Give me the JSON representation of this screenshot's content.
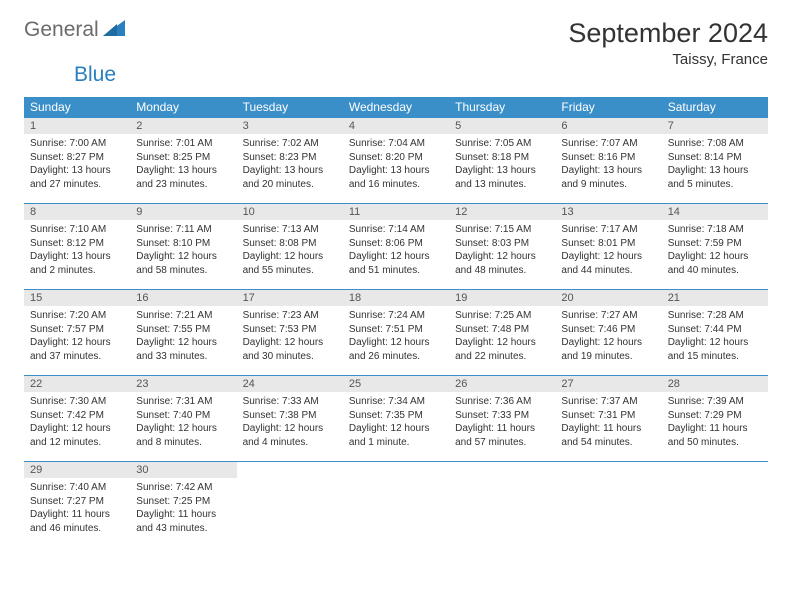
{
  "brand": {
    "part1": "General",
    "part2": "Blue"
  },
  "title": "September 2024",
  "location": "Taissy, France",
  "style": {
    "header_bg": "#3b8fc9",
    "header_text": "#ffffff",
    "cell_border": "#3b8fc9",
    "daynum_bg": "#e8e8e8",
    "body_bg": "#ffffff",
    "text_color": "#333333",
    "logo_gray": "#6b6b6b",
    "logo_blue": "#2a7fbf"
  },
  "weekdays": [
    "Sunday",
    "Monday",
    "Tuesday",
    "Wednesday",
    "Thursday",
    "Friday",
    "Saturday"
  ],
  "days": [
    {
      "n": 1,
      "sr": "7:00 AM",
      "ss": "8:27 PM",
      "dl": "13 hours and 27 minutes."
    },
    {
      "n": 2,
      "sr": "7:01 AM",
      "ss": "8:25 PM",
      "dl": "13 hours and 23 minutes."
    },
    {
      "n": 3,
      "sr": "7:02 AM",
      "ss": "8:23 PM",
      "dl": "13 hours and 20 minutes."
    },
    {
      "n": 4,
      "sr": "7:04 AM",
      "ss": "8:20 PM",
      "dl": "13 hours and 16 minutes."
    },
    {
      "n": 5,
      "sr": "7:05 AM",
      "ss": "8:18 PM",
      "dl": "13 hours and 13 minutes."
    },
    {
      "n": 6,
      "sr": "7:07 AM",
      "ss": "8:16 PM",
      "dl": "13 hours and 9 minutes."
    },
    {
      "n": 7,
      "sr": "7:08 AM",
      "ss": "8:14 PM",
      "dl": "13 hours and 5 minutes."
    },
    {
      "n": 8,
      "sr": "7:10 AM",
      "ss": "8:12 PM",
      "dl": "13 hours and 2 minutes."
    },
    {
      "n": 9,
      "sr": "7:11 AM",
      "ss": "8:10 PM",
      "dl": "12 hours and 58 minutes."
    },
    {
      "n": 10,
      "sr": "7:13 AM",
      "ss": "8:08 PM",
      "dl": "12 hours and 55 minutes."
    },
    {
      "n": 11,
      "sr": "7:14 AM",
      "ss": "8:06 PM",
      "dl": "12 hours and 51 minutes."
    },
    {
      "n": 12,
      "sr": "7:15 AM",
      "ss": "8:03 PM",
      "dl": "12 hours and 48 minutes."
    },
    {
      "n": 13,
      "sr": "7:17 AM",
      "ss": "8:01 PM",
      "dl": "12 hours and 44 minutes."
    },
    {
      "n": 14,
      "sr": "7:18 AM",
      "ss": "7:59 PM",
      "dl": "12 hours and 40 minutes."
    },
    {
      "n": 15,
      "sr": "7:20 AM",
      "ss": "7:57 PM",
      "dl": "12 hours and 37 minutes."
    },
    {
      "n": 16,
      "sr": "7:21 AM",
      "ss": "7:55 PM",
      "dl": "12 hours and 33 minutes."
    },
    {
      "n": 17,
      "sr": "7:23 AM",
      "ss": "7:53 PM",
      "dl": "12 hours and 30 minutes."
    },
    {
      "n": 18,
      "sr": "7:24 AM",
      "ss": "7:51 PM",
      "dl": "12 hours and 26 minutes."
    },
    {
      "n": 19,
      "sr": "7:25 AM",
      "ss": "7:48 PM",
      "dl": "12 hours and 22 minutes."
    },
    {
      "n": 20,
      "sr": "7:27 AM",
      "ss": "7:46 PM",
      "dl": "12 hours and 19 minutes."
    },
    {
      "n": 21,
      "sr": "7:28 AM",
      "ss": "7:44 PM",
      "dl": "12 hours and 15 minutes."
    },
    {
      "n": 22,
      "sr": "7:30 AM",
      "ss": "7:42 PM",
      "dl": "12 hours and 12 minutes."
    },
    {
      "n": 23,
      "sr": "7:31 AM",
      "ss": "7:40 PM",
      "dl": "12 hours and 8 minutes."
    },
    {
      "n": 24,
      "sr": "7:33 AM",
      "ss": "7:38 PM",
      "dl": "12 hours and 4 minutes."
    },
    {
      "n": 25,
      "sr": "7:34 AM",
      "ss": "7:35 PM",
      "dl": "12 hours and 1 minute."
    },
    {
      "n": 26,
      "sr": "7:36 AM",
      "ss": "7:33 PM",
      "dl": "11 hours and 57 minutes."
    },
    {
      "n": 27,
      "sr": "7:37 AM",
      "ss": "7:31 PM",
      "dl": "11 hours and 54 minutes."
    },
    {
      "n": 28,
      "sr": "7:39 AM",
      "ss": "7:29 PM",
      "dl": "11 hours and 50 minutes."
    },
    {
      "n": 29,
      "sr": "7:40 AM",
      "ss": "7:27 PM",
      "dl": "11 hours and 46 minutes."
    },
    {
      "n": 30,
      "sr": "7:42 AM",
      "ss": "7:25 PM",
      "dl": "11 hours and 43 minutes."
    }
  ],
  "labels": {
    "sunrise": "Sunrise:",
    "sunset": "Sunset:",
    "daylight": "Daylight:"
  },
  "start_weekday": 0,
  "cols": 7
}
